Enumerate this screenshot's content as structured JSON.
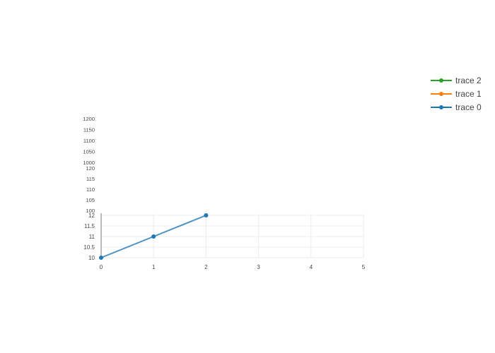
{
  "chart_data": {
    "type": "line",
    "title": "",
    "xlabel": "",
    "ylabel": "",
    "xaxis": {
      "range": [
        0,
        5
      ],
      "ticks": [
        0,
        1,
        2,
        3,
        4,
        5
      ],
      "tick_labels": [
        "0",
        "1",
        "2",
        "3",
        "4",
        "5"
      ],
      "grid": true
    },
    "yaxes": [
      {
        "name": "y",
        "range": [
          10,
          12
        ],
        "ticks": [
          10,
          10.5,
          11,
          11.5,
          12
        ],
        "tick_labels": [
          "10",
          "10.5",
          "11",
          "11.5",
          "12"
        ],
        "grid": true
      },
      {
        "name": "y2",
        "range": [
          100,
          120
        ],
        "ticks": [
          100,
          105,
          110,
          115,
          120
        ],
        "tick_labels": [
          "100",
          "105",
          "110",
          "115",
          "120"
        ],
        "grid": false
      },
      {
        "name": "y3",
        "range": [
          1000,
          1200
        ],
        "ticks": [
          1000,
          1050,
          1100,
          1150,
          1200
        ],
        "tick_labels": [
          "1000",
          "1050",
          "1100",
          "1150",
          "1200"
        ],
        "grid": false
      }
    ],
    "series": [
      {
        "name": "trace 0",
        "color": "#1f77b4",
        "yaxis": "y",
        "x": [
          0,
          1,
          2
        ],
        "y": [
          10,
          11,
          12
        ]
      },
      {
        "name": "trace 1",
        "color": "#ff7f0e",
        "yaxis": "y2",
        "x": [],
        "y": []
      },
      {
        "name": "trace 2",
        "color": "#2ca02c",
        "yaxis": "y3",
        "x": [],
        "y": []
      }
    ],
    "legend": {
      "placement": "top-right",
      "entries": [
        "trace 2",
        "trace 1",
        "trace 0"
      ]
    }
  }
}
